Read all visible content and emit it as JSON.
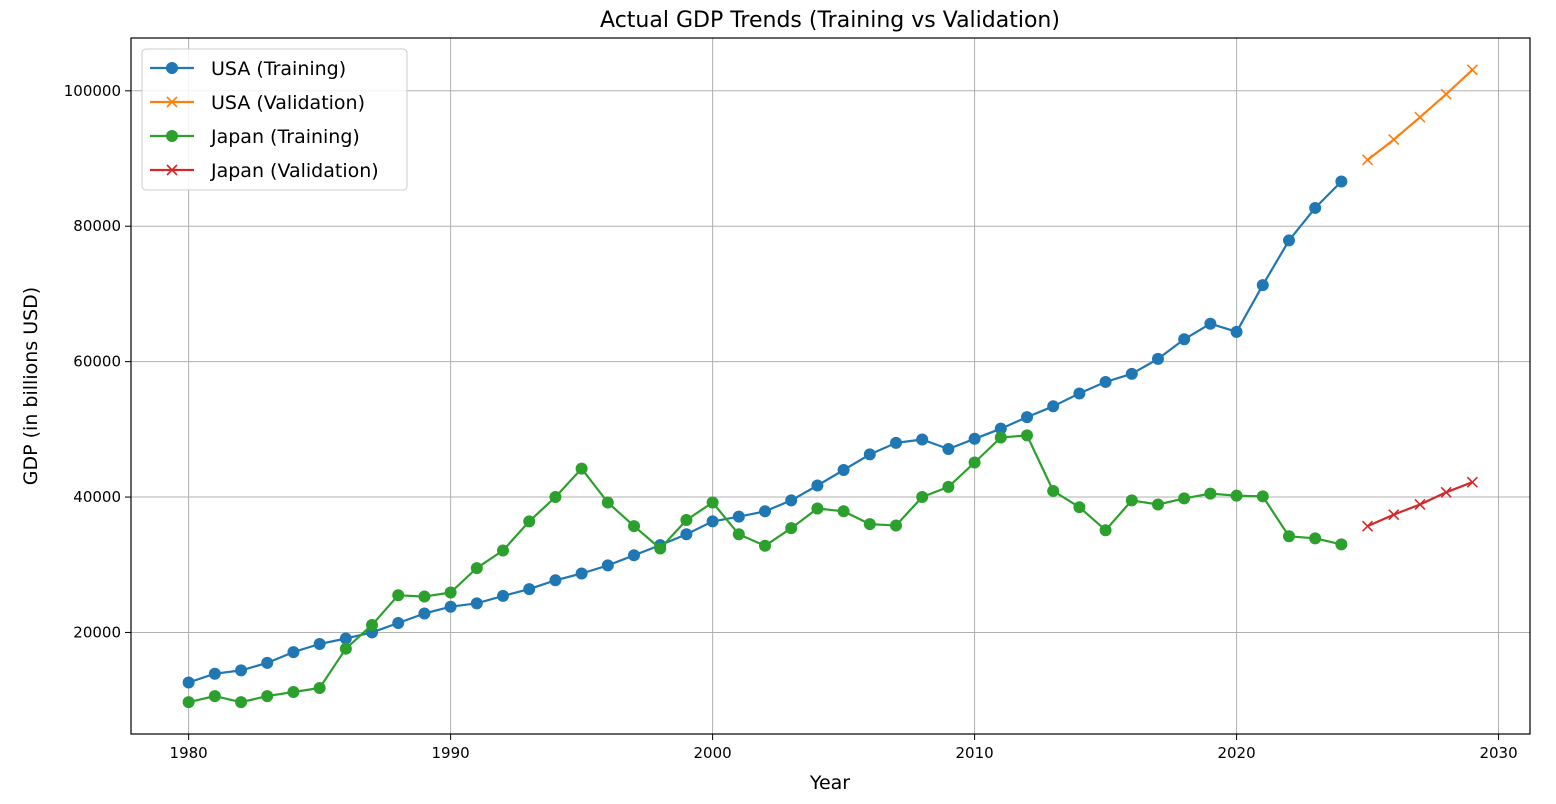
{
  "chart_data": {
    "type": "line",
    "title": "Actual GDP Trends (Training vs Validation)",
    "xlabel": "Year",
    "ylabel": "GDP (in billions USD)",
    "xlim": [
      1977.8,
      2031.2
    ],
    "ylim": [
      5000,
      107800
    ],
    "xticks": [
      1980,
      1990,
      2000,
      2010,
      2020,
      2030
    ],
    "yticks": [
      20000,
      40000,
      60000,
      80000,
      100000
    ],
    "grid": true,
    "legend_position": "top-left",
    "series": [
      {
        "name": "USA (Training)",
        "color": "#1f77b4",
        "marker": "circle",
        "x": [
          1980,
          1981,
          1982,
          1983,
          1984,
          1985,
          1986,
          1987,
          1988,
          1989,
          1990,
          1991,
          1992,
          1993,
          1994,
          1995,
          1996,
          1997,
          1998,
          1999,
          2000,
          2001,
          2002,
          2003,
          2004,
          2005,
          2006,
          2007,
          2008,
          2009,
          2010,
          2011,
          2012,
          2013,
          2014,
          2015,
          2016,
          2017,
          2018,
          2019,
          2020,
          2021,
          2022,
          2023,
          2024
        ],
        "y": [
          12600,
          13900,
          14400,
          15500,
          17100,
          18300,
          19100,
          20000,
          21400,
          22800,
          23800,
          24300,
          25400,
          26400,
          27700,
          28700,
          29900,
          31400,
          32900,
          34500,
          36400,
          37100,
          37900,
          39500,
          41700,
          44000,
          46300,
          48000,
          48500,
          47100,
          48600,
          50100,
          51800,
          53400,
          55300,
          57000,
          58200,
          60400,
          63300,
          65600,
          64400,
          71300,
          77900,
          82700,
          86600
        ]
      },
      {
        "name": "USA (Validation)",
        "color": "#ff7f0e",
        "marker": "x",
        "x": [
          2025,
          2026,
          2027,
          2028,
          2029
        ],
        "y": [
          89800,
          92800,
          96100,
          99500,
          103100
        ]
      },
      {
        "name": "Japan (Training)",
        "color": "#2ca02c",
        "marker": "circle",
        "x": [
          1980,
          1981,
          1982,
          1983,
          1984,
          1985,
          1986,
          1987,
          1988,
          1989,
          1990,
          1991,
          1992,
          1993,
          1994,
          1995,
          1996,
          1997,
          1998,
          1999,
          2000,
          2001,
          2002,
          2003,
          2004,
          2005,
          2006,
          2007,
          2008,
          2009,
          2010,
          2011,
          2012,
          2013,
          2014,
          2015,
          2016,
          2017,
          2018,
          2019,
          2020,
          2021,
          2022,
          2023,
          2024
        ],
        "y": [
          9700,
          10600,
          9700,
          10600,
          11200,
          11800,
          17600,
          21100,
          25500,
          25300,
          25900,
          29500,
          32100,
          36400,
          40000,
          44200,
          39200,
          35700,
          32400,
          36600,
          39200,
          34500,
          32800,
          35400,
          38300,
          37900,
          36000,
          35800,
          40000,
          41500,
          45100,
          48800,
          49100,
          40900,
          38500,
          35100,
          39500,
          38900,
          39800,
          40500,
          40200,
          40100,
          34200,
          33900,
          33000
        ]
      },
      {
        "name": "Japan (Validation)",
        "color": "#d62728",
        "marker": "x",
        "x": [
          2025,
          2026,
          2027,
          2028,
          2029
        ],
        "y": [
          35700,
          37400,
          38900,
          40700,
          42200
        ]
      }
    ]
  }
}
